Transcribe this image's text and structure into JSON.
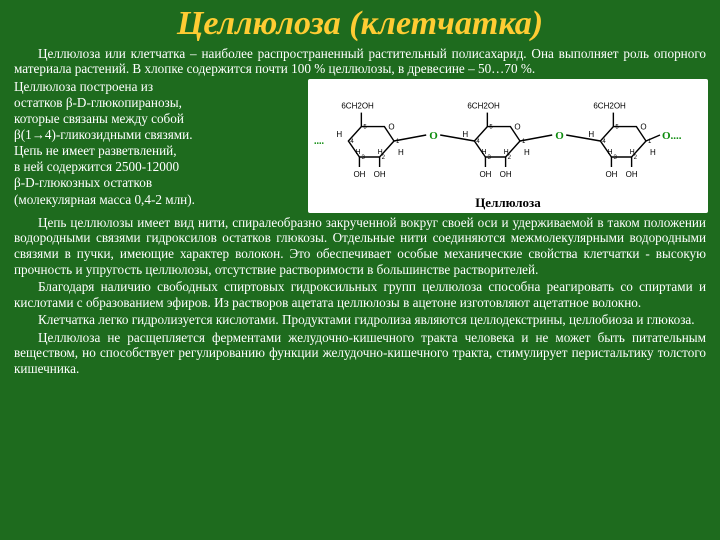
{
  "colors": {
    "background": "#1e6b1e",
    "title": "#ffcc33",
    "text": "#ffffff",
    "diagram_bg": "#ffffff",
    "diagram_stroke": "#000000",
    "diagram_o_bridge": "#0a8a0a",
    "diagram_text": "#000000"
  },
  "title": "Целлюлоза  (клетчатка)",
  "paragraphs": {
    "intro": "Целлюлоза или клетчатка – наиболее распространенный растительный полисахарид. Она выполняет роль опорного материала растений. В хлопке содержится почти 100 % целлюлозы, в древесине – 50…70 %.",
    "p3": "Цепь целлюлозы имеет вид нити, спиралеобразно закрученной вокруг своей оси и удерживаемой в таком положении водородными связями гидроксилов остатков глюкозы. Отдельные нити соединяются межмолекулярными водородными связями в пучки, имеющие характер волокон. Это обеспечивает особые механические свойства клетчатки - высокую прочность и упругость целлюлозы, отсутствие растворимости в большинстве растворителей.",
    "p4": "Благодаря наличию свободных спиртовых гидроксильных групп целлюлоза способна реагировать со спиртами и кислотами с образованием эфиров. Из растворов ацетата целлюлозы в ацетоне изготовляют ацетатное волокно.",
    "p5": "Клетчатка легко гидролизуется кислотами. Продуктами гидролиза являются целлодекстрины, целлобиоза и глюкоза.",
    "p6": "Целлюлоза не расщепляется ферментами желудочно-кишечного тракта человека и не может быть питательным веществом, но способствует регулированию функции желудочно-кишечного тракта, стимулирует перистальтику толстого кишечника."
  },
  "left_lines": [
    "Целлюлоза построена из",
    "остатков β-D-глюкопиранозы,",
    "которые связаны между собой",
    "β(1→4)-гликозидными связями.",
    "Цепь не имеет разветвлений,",
    "в ней содержится 2500-12000",
    "β-D-глюкозных остатков",
    "(молекулярная масса 0,4-2 млн)."
  ],
  "diagram": {
    "label": "Целлюлоза",
    "ch2oh": "CH₂OH",
    "superscript6": "6",
    "ring_label_nums": [
      "5",
      "4",
      "3",
      "2",
      "1"
    ],
    "OH": "OH",
    "H": "H",
    "O": "O",
    "bridge_O": "O",
    "dots": "....",
    "ring_stroke_width": 1.4,
    "font_size_small": 8,
    "font_size_label": 10
  }
}
